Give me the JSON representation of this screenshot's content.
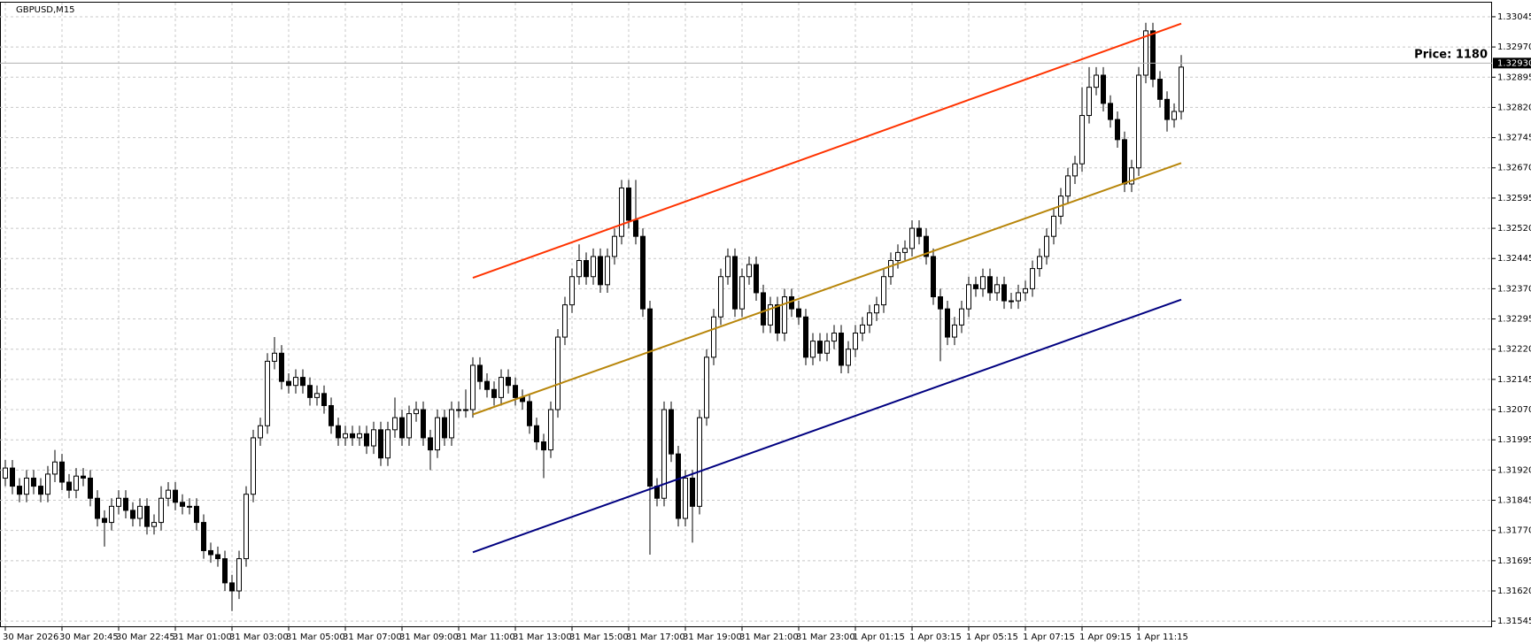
{
  "chart_data": {
    "type": "candlestick",
    "title": "GBPUSD,M15",
    "annotation": "Price: 1180",
    "annotation_color": "#1e8a3c",
    "grid": true,
    "up_color": "#ffffff",
    "down_color": "#000000",
    "ylim": [
      1.3153,
      1.3308
    ],
    "yticks": [
      1.33045,
      {
        "value": 1.3297,
        "label": "1.32970"
      },
      1.32895,
      {
        "value": 1.3282,
        "label": "1.32820"
      },
      1.32745,
      {
        "value": 1.3267,
        "label": "1.32670"
      },
      1.32595,
      {
        "value": 1.3252,
        "label": "1.32520"
      },
      1.32445,
      {
        "value": 1.3237,
        "label": "1.32370"
      },
      1.32295,
      {
        "value": 1.3222,
        "label": "1.32220"
      },
      1.32145,
      {
        "value": 1.3207,
        "label": "1.32070"
      },
      1.31995,
      {
        "value": 1.3192,
        "label": "1.31920"
      },
      1.31845,
      {
        "value": 1.3177,
        "label": "1.31770"
      },
      1.31695,
      {
        "value": 1.3162,
        "label": "1.31620"
      },
      1.31545
    ],
    "current_price": {
      "value": 1.3293,
      "label": "1.32930"
    },
    "categories": [
      "30 Mar 2026",
      null,
      null,
      null,
      null,
      null,
      null,
      null,
      "30 Mar 20:45",
      null,
      null,
      null,
      null,
      null,
      null,
      null,
      "30 Mar 22:45",
      null,
      null,
      null,
      null,
      null,
      null,
      null,
      "31 Mar 01:00",
      null,
      null,
      null,
      null,
      null,
      null,
      null,
      "31 Mar 03:00",
      null,
      null,
      null,
      null,
      null,
      null,
      null,
      "31 Mar 05:00",
      null,
      null,
      null,
      null,
      null,
      null,
      null,
      "31 Mar 07:00",
      null,
      null,
      null,
      null,
      null,
      null,
      null,
      "31 Mar 09:00",
      null,
      null,
      null,
      null,
      null,
      null,
      null,
      "31 Mar 11:00",
      null,
      null,
      null,
      null,
      null,
      null,
      null,
      "31 Mar 13:00",
      null,
      null,
      null,
      null,
      null,
      null,
      null,
      "31 Mar 15:00",
      null,
      null,
      null,
      null,
      null,
      null,
      null,
      "31 Mar 17:00",
      null,
      null,
      null,
      null,
      null,
      null,
      null,
      "31 Mar 19:00",
      null,
      null,
      null,
      null,
      null,
      null,
      null,
      "31 Mar 21:00",
      null,
      null,
      null,
      null,
      null,
      null,
      null,
      "31 Mar 23:00",
      null,
      null,
      null,
      null,
      null,
      null,
      null,
      "1 Apr 01:15",
      null,
      null,
      null,
      null,
      null,
      null,
      null,
      "1 Apr 03:15",
      null,
      null,
      null,
      null,
      null,
      null,
      null,
      "1 Apr 05:15",
      null,
      null,
      null,
      null,
      null,
      null,
      null,
      "1 Apr 07:15",
      null,
      null,
      null,
      null,
      null,
      null,
      null,
      "1 Apr 09:15",
      null,
      null,
      null,
      null,
      null,
      null,
      null,
      "1 Apr 11:15",
      null,
      null,
      null,
      null,
      null,
      null
    ],
    "open": [
      1.319,
      1.31925,
      1.3188,
      1.3186,
      1.319,
      1.3188,
      1.3186,
      1.3191,
      1.3194,
      1.3189,
      1.3187,
      1.31905,
      1.319,
      1.3185,
      1.318,
      1.3179,
      1.3183,
      1.3185,
      1.3182,
      1.318,
      1.3183,
      1.3178,
      1.3179,
      1.3185,
      1.3187,
      1.3184,
      1.3183,
      1.3183,
      1.3179,
      1.3172,
      1.3171,
      1.317,
      1.3164,
      1.3162,
      1.317,
      1.3186,
      1.32,
      1.3203,
      1.3219,
      1.3221,
      1.3214,
      1.3213,
      1.3215,
      1.3213,
      1.321,
      1.3211,
      1.3208,
      1.3203,
      1.32,
      1.3201,
      1.32,
      1.3201,
      1.3198,
      1.3202,
      1.3195,
      1.3202,
      1.3205,
      1.32,
      1.3206,
      1.3207,
      1.32,
      1.3197,
      1.3205,
      1.32,
      1.3207,
      1.3207,
      1.3207,
      1.3218,
      1.3214,
      1.3212,
      1.321,
      1.3215,
      1.3213,
      1.321,
      1.3209,
      1.3203,
      1.3199,
      1.3197,
      1.3207,
      1.3225,
      1.3233,
      1.324,
      1.3244,
      1.324,
      1.3245,
      1.3238,
      1.3245,
      1.325,
      1.3262,
      1.3254,
      1.325,
      1.3232,
      1.3188,
      1.3185,
      1.3207,
      1.3196,
      1.318,
      1.319,
      1.3183,
      1.3205,
      1.322,
      1.323,
      1.324,
      1.3245,
      1.3232,
      1.324,
      1.3243,
      1.3236,
      1.3228,
      1.3233,
      1.3226,
      1.3235,
      1.3232,
      1.323,
      1.322,
      1.3224,
      1.3221,
      1.3224,
      1.3226,
      1.3218,
      1.3222,
      1.3226,
      1.3228,
      1.3231,
      1.3233,
      1.324,
      1.3244,
      1.3246,
      1.3247,
      1.3252,
      1.325,
      1.3245,
      1.3235,
      1.3232,
      1.3225,
      1.3228,
      1.3232,
      1.3238,
      1.3237,
      1.324,
      1.3236,
      1.3238,
      1.3234,
      1.3234,
      1.3236,
      1.3237,
      1.3242,
      1.3245,
      1.325,
      1.3255,
      1.326,
      1.3265,
      1.3268,
      1.328,
      1.3287,
      1.329,
      1.3283,
      1.3279,
      1.3274,
      1.3263,
      1.3267,
      1.329,
      1.3301,
      1.3289,
      1.3284,
      1.3279,
      1.3281
    ],
    "high": [
      1.31945,
      1.31945,
      1.319,
      1.3192,
      1.3192,
      1.319,
      1.3193,
      1.3197,
      1.3196,
      1.3191,
      1.31925,
      1.31925,
      1.3192,
      1.3187,
      1.3182,
      1.3185,
      1.3187,
      1.3187,
      1.3184,
      1.3185,
      1.3185,
      1.3181,
      1.3188,
      1.3189,
      1.3189,
      1.3186,
      1.3185,
      1.3185,
      1.3181,
      1.3174,
      1.3173,
      1.3172,
      1.3166,
      1.3172,
      1.3188,
      1.3202,
      1.3205,
      1.3221,
      1.3225,
      1.3223,
      1.3216,
      1.3217,
      1.3217,
      1.3215,
      1.3213,
      1.3213,
      1.321,
      1.3205,
      1.3203,
      1.3203,
      1.3203,
      1.3203,
      1.3204,
      1.3204,
      1.3204,
      1.321,
      1.3207,
      1.3208,
      1.3209,
      1.3209,
      1.3202,
      1.3207,
      1.3207,
      1.3209,
      1.3209,
      1.3212,
      1.322,
      1.322,
      1.3216,
      1.3214,
      1.3217,
      1.3217,
      1.3215,
      1.3212,
      1.3211,
      1.3205,
      1.3201,
      1.3209,
      1.3227,
      1.3235,
      1.3242,
      1.3248,
      1.3246,
      1.3247,
      1.3247,
      1.3247,
      1.3252,
      1.3264,
      1.3264,
      1.3264,
      1.3252,
      1.3234,
      1.319,
      1.3209,
      1.3209,
      1.3198,
      1.3192,
      1.3192,
      1.3207,
      1.3222,
      1.3232,
      1.3242,
      1.3247,
      1.3247,
      1.3242,
      1.3245,
      1.3245,
      1.3238,
      1.3235,
      1.3235,
      1.3237,
      1.3237,
      1.3234,
      1.3232,
      1.3226,
      1.3226,
      1.3226,
      1.3228,
      1.3228,
      1.3224,
      1.3228,
      1.323,
      1.3233,
      1.3235,
      1.3242,
      1.3246,
      1.3248,
      1.3249,
      1.3254,
      1.3254,
      1.3252,
      1.3247,
      1.3237,
      1.3234,
      1.323,
      1.3234,
      1.324,
      1.324,
      1.3242,
      1.3242,
      1.324,
      1.324,
      1.3236,
      1.3238,
      1.3239,
      1.3244,
      1.3247,
      1.3252,
      1.3257,
      1.3262,
      1.3267,
      1.327,
      1.3287,
      1.3292,
      1.3292,
      1.3292,
      1.3285,
      1.3281,
      1.3276,
      1.3269,
      1.3292,
      1.3303,
      1.3303,
      1.3291,
      1.3286,
      1.3283,
      1.3295
    ],
    "low": [
      1.3188,
      1.3186,
      1.3184,
      1.3184,
      1.3186,
      1.3184,
      1.3184,
      1.3189,
      1.3187,
      1.3185,
      1.3185,
      1.3188,
      1.3183,
      1.3178,
      1.3173,
      1.3177,
      1.3181,
      1.318,
      1.3178,
      1.3178,
      1.3176,
      1.3176,
      1.3177,
      1.3183,
      1.3182,
      1.3181,
      1.3181,
      1.3177,
      1.317,
      1.3169,
      1.3168,
      1.3162,
      1.3157,
      1.316,
      1.3168,
      1.3184,
      1.3198,
      1.3201,
      1.3217,
      1.3212,
      1.3211,
      1.3211,
      1.3211,
      1.3208,
      1.3208,
      1.3206,
      1.3201,
      1.3198,
      1.3198,
      1.3198,
      1.3198,
      1.3196,
      1.3196,
      1.3193,
      1.3193,
      1.32,
      1.3198,
      1.3198,
      1.3204,
      1.3198,
      1.3192,
      1.3195,
      1.3198,
      1.3198,
      1.3205,
      1.3205,
      1.3205,
      1.3212,
      1.321,
      1.3208,
      1.3208,
      1.3211,
      1.3208,
      1.3207,
      1.3201,
      1.3197,
      1.319,
      1.3195,
      1.3205,
      1.3223,
      1.3231,
      1.3238,
      1.3238,
      1.3238,
      1.3236,
      1.3236,
      1.3243,
      1.3248,
      1.3252,
      1.3248,
      1.323,
      1.3171,
      1.3183,
      1.3183,
      1.3194,
      1.3178,
      1.3178,
      1.3174,
      1.3181,
      1.3203,
      1.3218,
      1.3228,
      1.3238,
      1.323,
      1.323,
      1.3238,
      1.3234,
      1.3226,
      1.3226,
      1.3224,
      1.3224,
      1.323,
      1.3228,
      1.3218,
      1.3218,
      1.3219,
      1.3219,
      1.3222,
      1.3216,
      1.3216,
      1.322,
      1.3224,
      1.3226,
      1.3229,
      1.3231,
      1.3238,
      1.3242,
      1.3244,
      1.3245,
      1.3248,
      1.3243,
      1.3233,
      1.3219,
      1.3223,
      1.3223,
      1.3226,
      1.323,
      1.3235,
      1.3235,
      1.3234,
      1.3234,
      1.3232,
      1.3232,
      1.3232,
      1.3234,
      1.3235,
      1.324,
      1.3243,
      1.3248,
      1.3253,
      1.3258,
      1.3263,
      1.3266,
      1.3278,
      1.3285,
      1.3281,
      1.3277,
      1.3272,
      1.3261,
      1.3261,
      1.3265,
      1.3288,
      1.3287,
      1.3282,
      1.3276,
      1.3277,
      1.3279
    ],
    "close": [
      1.31925,
      1.3188,
      1.3186,
      1.319,
      1.3188,
      1.3186,
      1.3191,
      1.3194,
      1.3189,
      1.3187,
      1.31905,
      1.319,
      1.3185,
      1.318,
      1.3179,
      1.3183,
      1.3185,
      1.3182,
      1.318,
      1.3183,
      1.3178,
      1.3179,
      1.3185,
      1.3187,
      1.3184,
      1.3183,
      1.3183,
      1.3179,
      1.3172,
      1.3171,
      1.317,
      1.3164,
      1.3162,
      1.317,
      1.3186,
      1.32,
      1.3203,
      1.3219,
      1.3221,
      1.3214,
      1.3213,
      1.3215,
      1.3213,
      1.321,
      1.3211,
      1.3208,
      1.3203,
      1.32,
      1.3201,
      1.32,
      1.3201,
      1.3198,
      1.3202,
      1.3195,
      1.3202,
      1.3205,
      1.32,
      1.3206,
      1.3207,
      1.32,
      1.3197,
      1.3205,
      1.32,
      1.3207,
      1.3207,
      1.3207,
      1.3218,
      1.3214,
      1.3212,
      1.321,
      1.3215,
      1.3213,
      1.321,
      1.3209,
      1.3203,
      1.3199,
      1.3197,
      1.3207,
      1.3225,
      1.3233,
      1.324,
      1.3244,
      1.324,
      1.3245,
      1.3238,
      1.3245,
      1.325,
      1.3262,
      1.3254,
      1.325,
      1.3232,
      1.3188,
      1.3185,
      1.3207,
      1.3196,
      1.318,
      1.319,
      1.3183,
      1.3205,
      1.322,
      1.323,
      1.324,
      1.3245,
      1.3232,
      1.324,
      1.3243,
      1.3236,
      1.3228,
      1.3233,
      1.3226,
      1.3235,
      1.3232,
      1.323,
      1.322,
      1.3224,
      1.3221,
      1.3224,
      1.3226,
      1.3218,
      1.3222,
      1.3226,
      1.3228,
      1.3231,
      1.3233,
      1.324,
      1.3244,
      1.3246,
      1.3247,
      1.3252,
      1.325,
      1.3245,
      1.3235,
      1.3232,
      1.3225,
      1.3228,
      1.3232,
      1.3238,
      1.3237,
      1.324,
      1.3236,
      1.3238,
      1.3234,
      1.3234,
      1.3236,
      1.3237,
      1.3242,
      1.3245,
      1.325,
      1.3255,
      1.326,
      1.3265,
      1.3268,
      1.328,
      1.3287,
      1.329,
      1.3283,
      1.3279,
      1.3274,
      1.3263,
      1.3267,
      1.329,
      1.3301,
      1.3289,
      1.3284,
      1.3279,
      1.3281,
      1.3292
    ],
    "lines": [
      {
        "color": "#ff3300",
        "x": [
          66,
          166
        ],
        "values": [
          1.32397,
          1.33028
        ]
      },
      {
        "color": "#b8860b",
        "x": [
          66,
          166
        ],
        "values": [
          1.32058,
          1.32682
        ]
      },
      {
        "color": "#000080",
        "x": [
          66,
          166
        ],
        "values": [
          1.31716,
          1.32343
        ]
      }
    ]
  }
}
